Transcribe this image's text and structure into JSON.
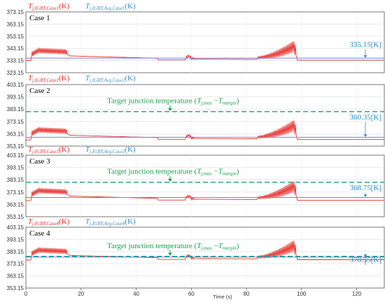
{
  "colors": {
    "junction": "#e8312c",
    "average": "#7b7bf0",
    "target": "#1aa37a",
    "annotation_blue": "#2a8ac2",
    "annotation_green": "#17a24a"
  },
  "chart_data": [
    {
      "type": "line",
      "panel_label": "Case 1",
      "legend": {
        "junction": "T",
        "junction_sub": "j,IGBT,Case1",
        "average": "T",
        "average_sub": "j,IGBT,Avg,Case1",
        "unit": "(K)"
      },
      "xlim": [
        0,
        130
      ],
      "ylim": [
        323.15,
        373.15
      ],
      "yticks": [
        "373.15",
        "363.15",
        "353.15",
        "343.15",
        "333.15",
        "323.15"
      ],
      "average_value": 335.15,
      "average_label": "335.15[K]",
      "baseline": 333.15,
      "target": null
    },
    {
      "type": "line",
      "panel_label": "Case 2",
      "legend": {
        "junction": "T",
        "junction_sub": "j,IGBT,Case2",
        "average": "T",
        "average_sub": "j,IGBT,Avg,Case2",
        "unit": "(K)"
      },
      "xlim": [
        0,
        130
      ],
      "ylim": [
        353.15,
        403.15
      ],
      "yticks": [
        "403.15",
        "393.15",
        "383.15",
        "373.15",
        "363.15",
        "353.15"
      ],
      "average_value": 360.35,
      "average_label": "360.35[K]",
      "baseline": 358.15,
      "target": {
        "value": 381.15,
        "text": "Target junction temperature (",
        "t1": "T",
        "t1_sub": "j,max",
        "minus": " −",
        "t2": "T",
        "t2_sub": "margin",
        "close": ")"
      }
    },
    {
      "type": "line",
      "panel_label": "Case 3",
      "legend": {
        "junction": "T",
        "junction_sub": "j,IGBT,Case3",
        "average": "T",
        "average_sub": "j,IGBT,Avg,Case3",
        "unit": "(K)"
      },
      "xlim": [
        0,
        130
      ],
      "ylim": [
        353.15,
        403.15
      ],
      "yticks": [
        "403.15",
        "393.15",
        "383.15",
        "373.15",
        "363.15",
        "353.15"
      ],
      "average_value": 368.75,
      "average_label": "368.75[K]",
      "baseline": 366.15,
      "target": {
        "value": 381.15,
        "text": "Target junction temperature (",
        "t1": "T",
        "t1_sub": "j,max",
        "minus": " −",
        "t2": "T",
        "t2_sub": "margin",
        "close": ")"
      }
    },
    {
      "type": "line",
      "panel_label": "Case 4",
      "legend": {
        "junction": "T",
        "junction_sub": "j,IGBT,Case4",
        "average": "T",
        "average_sub": "j,IGBT,Avg,Case4",
        "unit": "(K)"
      },
      "xlim": [
        0,
        130
      ],
      "ylim": [
        353.15,
        403.15
      ],
      "yticks": [
        "403.15",
        "393.15",
        "383.15",
        "373.15",
        "363.15",
        "353.15"
      ],
      "average_value": 378.55,
      "average_label": "378.55[K]",
      "baseline": 376.15,
      "target": {
        "value": 379.15,
        "text": "Target junction temperature (",
        "t1": "T",
        "t1_sub": "j,max",
        "minus": " −",
        "t2": "T",
        "t2_sub": "margin",
        "close": ")"
      }
    }
  ],
  "x_axis": {
    "ticks": [
      "0",
      "20",
      "40",
      "60",
      "80",
      "100",
      "120"
    ],
    "label": "Time (s)"
  }
}
